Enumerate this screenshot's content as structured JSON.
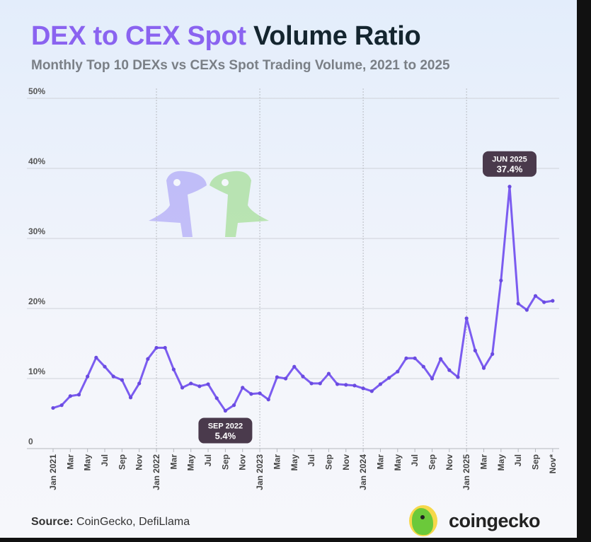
{
  "header": {
    "title_accent": "DEX to CEX Spot",
    "title_rest": "Volume Ratio",
    "subtitle": "Monthly Top 10 DEXs vs CEXs Spot Trading Volume, 2021 to 2025"
  },
  "footer": {
    "source_label": "Source:",
    "source_text": "CoinGecko, DefiLlama",
    "logo_text": "coingecko"
  },
  "colors": {
    "line": "#7b5cf0",
    "annotation_bg": "#4a3a4c",
    "grid": "#c9ccd2"
  },
  "chart_data": {
    "type": "line",
    "title": "DEX to CEX Spot Volume Ratio",
    "subtitle": "Monthly Top 10 DEXs vs CEXs Spot Trading Volume, 2021 to 2025",
    "ylim": [
      0,
      50
    ],
    "yticks": [
      "0",
      "10%",
      "20%",
      "30%",
      "40%",
      "50%"
    ],
    "xticks": [
      "Jan 2021",
      "Mar",
      "May",
      "Jul",
      "Sep",
      "Nov",
      "Jan 2022",
      "Mar",
      "May",
      "Jul",
      "Sep",
      "Nov",
      "Jan 2023",
      "Mar",
      "May",
      "Jul",
      "Sep",
      "Nov",
      "Jan 2024",
      "Mar",
      "May",
      "Jul",
      "Sep",
      "Nov",
      "Jan 2025",
      "Mar",
      "May",
      "Jul",
      "Sep",
      "Nov*"
    ],
    "x_start": "Jan 2021",
    "series": [
      {
        "name": "DEX to CEX spot volume ratio (%)",
        "values": [
          5.8,
          6.2,
          7.5,
          7.7,
          10.3,
          13.0,
          11.7,
          10.3,
          9.8,
          7.3,
          9.3,
          12.8,
          14.4,
          14.4,
          11.3,
          8.7,
          9.3,
          8.9,
          9.2,
          7.2,
          5.4,
          6.2,
          8.7,
          7.8,
          7.9,
          7.0,
          10.2,
          10.0,
          11.7,
          10.3,
          9.3,
          9.3,
          10.7,
          9.2,
          9.1,
          9.0,
          8.6,
          8.2,
          9.2,
          10.1,
          11.0,
          12.9,
          12.9,
          11.7,
          10.0,
          12.8,
          11.2,
          10.2,
          18.6,
          14.0,
          11.5,
          13.5,
          24.0,
          37.4,
          20.7,
          19.8,
          21.8,
          20.9,
          21.1
        ]
      }
    ],
    "annotations": [
      {
        "label": "SEP 2022",
        "value": "5.4%",
        "index": 20
      },
      {
        "label": "JUN 2025",
        "value": "37.4%",
        "index": 53
      }
    ],
    "grid": true
  }
}
